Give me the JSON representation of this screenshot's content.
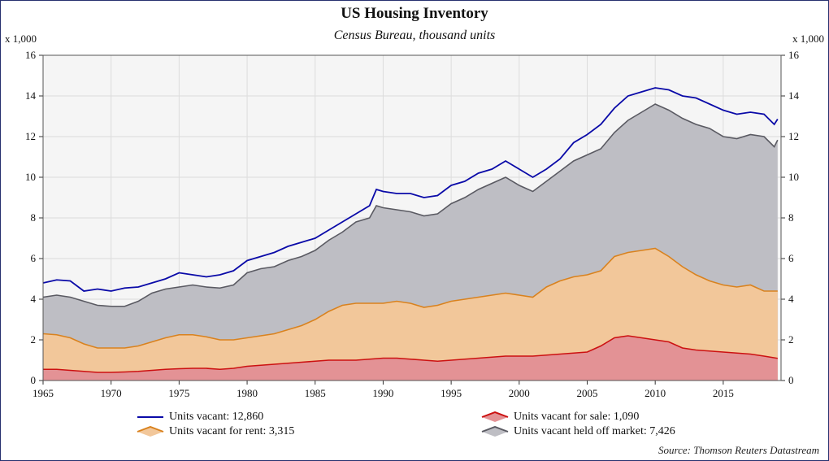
{
  "title": "US Housing Inventory",
  "subtitle": "Census Bureau, thousand units",
  "unit_left": "x 1,000",
  "unit_right": "x 1,000",
  "source": "Source: Thomson Reuters Datastream",
  "colors": {
    "background": "#f5f5f5",
    "grid": "#dcdcdc",
    "vacant_line": "#0a0aa8",
    "held_off_fill": "#bebec4",
    "held_off_line": "#5a5a62",
    "rent_fill": "#f2c79a",
    "rent_line": "#d9821e",
    "sale_fill": "#e39295",
    "sale_line": "#cc1111"
  },
  "chart_data": {
    "type": "area",
    "title": "US Housing Inventory",
    "subtitle": "Census Bureau, thousand units",
    "xlim": [
      1965,
      2019.25
    ],
    "ylim": [
      0,
      16
    ],
    "x_ticks": [
      1965,
      1970,
      1975,
      1980,
      1985,
      1990,
      1995,
      2000,
      2005,
      2010,
      2015
    ],
    "y_ticks": [
      0,
      2,
      4,
      6,
      8,
      10,
      12,
      14,
      16
    ],
    "grid": true,
    "stacked": true,
    "legend": [
      "Units vacant: 12,860",
      "Units vacant for sale: 1,090",
      "Units vacant for rent: 3,315",
      "Units vacant held off market: 7,426"
    ],
    "legend_position": "bottom",
    "series": [
      {
        "name": "Units vacant: 12,860",
        "stacking": "total line",
        "points": [
          [
            1965.0,
            4.8
          ],
          [
            1966.0,
            4.95
          ],
          [
            1967.0,
            4.9
          ],
          [
            1968.0,
            4.4
          ],
          [
            1969.0,
            4.5
          ],
          [
            1970.0,
            4.4
          ],
          [
            1971.0,
            4.55
          ],
          [
            1972.0,
            4.6
          ],
          [
            1973.0,
            4.8
          ],
          [
            1974.0,
            5.0
          ],
          [
            1975.0,
            5.3
          ],
          [
            1976.0,
            5.2
          ],
          [
            1977.0,
            5.1
          ],
          [
            1978.0,
            5.2
          ],
          [
            1979.0,
            5.4
          ],
          [
            1980.0,
            5.9
          ],
          [
            1981.0,
            6.1
          ],
          [
            1982.0,
            6.3
          ],
          [
            1983.0,
            6.6
          ],
          [
            1984.0,
            6.8
          ],
          [
            1985.0,
            7.0
          ],
          [
            1986.0,
            7.4
          ],
          [
            1987.0,
            7.8
          ],
          [
            1988.0,
            8.2
          ],
          [
            1989.0,
            8.6
          ],
          [
            1989.5,
            9.4
          ],
          [
            1990.0,
            9.3
          ],
          [
            1991.0,
            9.2
          ],
          [
            1992.0,
            9.2
          ],
          [
            1993.0,
            9.0
          ],
          [
            1994.0,
            9.1
          ],
          [
            1995.0,
            9.6
          ],
          [
            1996.0,
            9.8
          ],
          [
            1997.0,
            10.2
          ],
          [
            1998.0,
            10.4
          ],
          [
            1999.0,
            10.8
          ],
          [
            2000.0,
            10.4
          ],
          [
            2001.0,
            10.0
          ],
          [
            2002.0,
            10.4
          ],
          [
            2003.0,
            10.9
          ],
          [
            2004.0,
            11.7
          ],
          [
            2005.0,
            12.1
          ],
          [
            2006.0,
            12.6
          ],
          [
            2007.0,
            13.4
          ],
          [
            2008.0,
            14.0
          ],
          [
            2009.0,
            14.2
          ],
          [
            2010.0,
            14.4
          ],
          [
            2011.0,
            14.3
          ],
          [
            2012.0,
            14.0
          ],
          [
            2013.0,
            13.9
          ],
          [
            2014.0,
            13.6
          ],
          [
            2015.0,
            13.3
          ],
          [
            2016.0,
            13.1
          ],
          [
            2017.0,
            13.2
          ],
          [
            2018.0,
            13.1
          ],
          [
            2018.75,
            12.6
          ],
          [
            2019.0,
            12.86
          ]
        ]
      },
      {
        "name": "Units vacant held off market: 7,426",
        "stacking": "top of stack",
        "points": [
          [
            1965.0,
            4.1
          ],
          [
            1966.0,
            4.2
          ],
          [
            1967.0,
            4.1
          ],
          [
            1968.0,
            3.9
          ],
          [
            1969.0,
            3.7
          ],
          [
            1970.0,
            3.65
          ],
          [
            1971.0,
            3.65
          ],
          [
            1972.0,
            3.9
          ],
          [
            1973.0,
            4.3
          ],
          [
            1974.0,
            4.5
          ],
          [
            1975.0,
            4.6
          ],
          [
            1976.0,
            4.7
          ],
          [
            1977.0,
            4.6
          ],
          [
            1978.0,
            4.55
          ],
          [
            1979.0,
            4.7
          ],
          [
            1980.0,
            5.3
          ],
          [
            1981.0,
            5.5
          ],
          [
            1982.0,
            5.6
          ],
          [
            1983.0,
            5.9
          ],
          [
            1984.0,
            6.1
          ],
          [
            1985.0,
            6.4
          ],
          [
            1986.0,
            6.9
          ],
          [
            1987.0,
            7.3
          ],
          [
            1988.0,
            7.8
          ],
          [
            1989.0,
            8.0
          ],
          [
            1989.5,
            8.6
          ],
          [
            1990.0,
            8.5
          ],
          [
            1991.0,
            8.4
          ],
          [
            1992.0,
            8.3
          ],
          [
            1993.0,
            8.1
          ],
          [
            1994.0,
            8.2
          ],
          [
            1995.0,
            8.7
          ],
          [
            1996.0,
            9.0
          ],
          [
            1997.0,
            9.4
          ],
          [
            1998.0,
            9.7
          ],
          [
            1999.0,
            10.0
          ],
          [
            2000.0,
            9.6
          ],
          [
            2001.0,
            9.3
          ],
          [
            2002.0,
            9.8
          ],
          [
            2003.0,
            10.3
          ],
          [
            2004.0,
            10.8
          ],
          [
            2005.0,
            11.1
          ],
          [
            2006.0,
            11.4
          ],
          [
            2007.0,
            12.2
          ],
          [
            2008.0,
            12.8
          ],
          [
            2009.0,
            13.2
          ],
          [
            2010.0,
            13.6
          ],
          [
            2011.0,
            13.3
          ],
          [
            2012.0,
            12.9
          ],
          [
            2013.0,
            12.6
          ],
          [
            2014.0,
            12.4
          ],
          [
            2015.0,
            12.0
          ],
          [
            2016.0,
            11.9
          ],
          [
            2017.0,
            12.1
          ],
          [
            2018.0,
            12.0
          ],
          [
            2018.75,
            11.5
          ],
          [
            2019.0,
            11.83
          ]
        ]
      },
      {
        "name": "Units vacant for rent: 3,315",
        "stacking": "top of stack",
        "points": [
          [
            1965.0,
            2.3
          ],
          [
            1966.0,
            2.25
          ],
          [
            1967.0,
            2.1
          ],
          [
            1968.0,
            1.8
          ],
          [
            1969.0,
            1.6
          ],
          [
            1970.0,
            1.6
          ],
          [
            1971.0,
            1.6
          ],
          [
            1972.0,
            1.7
          ],
          [
            1973.0,
            1.9
          ],
          [
            1974.0,
            2.1
          ],
          [
            1975.0,
            2.25
          ],
          [
            1976.0,
            2.25
          ],
          [
            1977.0,
            2.15
          ],
          [
            1978.0,
            2.0
          ],
          [
            1979.0,
            2.0
          ],
          [
            1980.0,
            2.1
          ],
          [
            1981.0,
            2.2
          ],
          [
            1982.0,
            2.3
          ],
          [
            1983.0,
            2.5
          ],
          [
            1984.0,
            2.7
          ],
          [
            1985.0,
            3.0
          ],
          [
            1986.0,
            3.4
          ],
          [
            1987.0,
            3.7
          ],
          [
            1988.0,
            3.8
          ],
          [
            1989.0,
            3.8
          ],
          [
            1990.0,
            3.8
          ],
          [
            1991.0,
            3.9
          ],
          [
            1992.0,
            3.8
          ],
          [
            1993.0,
            3.6
          ],
          [
            1994.0,
            3.7
          ],
          [
            1995.0,
            3.9
          ],
          [
            1996.0,
            4.0
          ],
          [
            1997.0,
            4.1
          ],
          [
            1998.0,
            4.2
          ],
          [
            1999.0,
            4.3
          ],
          [
            2000.0,
            4.2
          ],
          [
            2001.0,
            4.1
          ],
          [
            2002.0,
            4.6
          ],
          [
            2003.0,
            4.9
          ],
          [
            2004.0,
            5.1
          ],
          [
            2005.0,
            5.2
          ],
          [
            2006.0,
            5.4
          ],
          [
            2007.0,
            6.1
          ],
          [
            2008.0,
            6.3
          ],
          [
            2009.0,
            6.4
          ],
          [
            2010.0,
            6.5
          ],
          [
            2011.0,
            6.1
          ],
          [
            2012.0,
            5.6
          ],
          [
            2013.0,
            5.2
          ],
          [
            2014.0,
            4.9
          ],
          [
            2015.0,
            4.7
          ],
          [
            2016.0,
            4.6
          ],
          [
            2017.0,
            4.7
          ],
          [
            2018.0,
            4.4
          ],
          [
            2019.0,
            4.4
          ]
        ]
      },
      {
        "name": "Units vacant for sale: 1,090",
        "stacking": "base",
        "points": [
          [
            1965.0,
            0.55
          ],
          [
            1966.0,
            0.55
          ],
          [
            1967.0,
            0.5
          ],
          [
            1968.0,
            0.45
          ],
          [
            1969.0,
            0.4
          ],
          [
            1970.0,
            0.4
          ],
          [
            1971.0,
            0.42
          ],
          [
            1972.0,
            0.45
          ],
          [
            1973.0,
            0.5
          ],
          [
            1974.0,
            0.55
          ],
          [
            1975.0,
            0.58
          ],
          [
            1976.0,
            0.6
          ],
          [
            1977.0,
            0.6
          ],
          [
            1978.0,
            0.55
          ],
          [
            1979.0,
            0.6
          ],
          [
            1980.0,
            0.7
          ],
          [
            1981.0,
            0.75
          ],
          [
            1982.0,
            0.8
          ],
          [
            1983.0,
            0.85
          ],
          [
            1984.0,
            0.9
          ],
          [
            1985.0,
            0.95
          ],
          [
            1986.0,
            1.0
          ],
          [
            1987.0,
            1.0
          ],
          [
            1988.0,
            1.0
          ],
          [
            1989.0,
            1.05
          ],
          [
            1990.0,
            1.1
          ],
          [
            1991.0,
            1.1
          ],
          [
            1992.0,
            1.05
          ],
          [
            1993.0,
            1.0
          ],
          [
            1994.0,
            0.95
          ],
          [
            1995.0,
            1.0
          ],
          [
            1996.0,
            1.05
          ],
          [
            1997.0,
            1.1
          ],
          [
            1998.0,
            1.15
          ],
          [
            1999.0,
            1.2
          ],
          [
            2000.0,
            1.2
          ],
          [
            2001.0,
            1.2
          ],
          [
            2002.0,
            1.25
          ],
          [
            2003.0,
            1.3
          ],
          [
            2004.0,
            1.35
          ],
          [
            2005.0,
            1.4
          ],
          [
            2006.0,
            1.7
          ],
          [
            2007.0,
            2.1
          ],
          [
            2008.0,
            2.2
          ],
          [
            2009.0,
            2.1
          ],
          [
            2010.0,
            2.0
          ],
          [
            2011.0,
            1.9
          ],
          [
            2012.0,
            1.6
          ],
          [
            2013.0,
            1.5
          ],
          [
            2014.0,
            1.45
          ],
          [
            2015.0,
            1.4
          ],
          [
            2016.0,
            1.35
          ],
          [
            2017.0,
            1.3
          ],
          [
            2018.0,
            1.2
          ],
          [
            2019.0,
            1.09
          ]
        ]
      }
    ]
  }
}
